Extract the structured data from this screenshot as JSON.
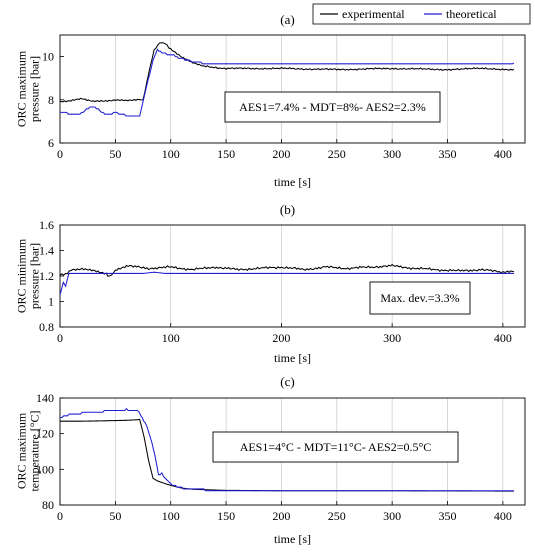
{
  "legend": {
    "items": [
      {
        "label": "experimental",
        "color": "#000000"
      },
      {
        "label": "theoretical",
        "color": "#1f1fd6"
      }
    ],
    "placement": "top-right"
  },
  "chart_data": [
    {
      "type": "line",
      "panel_label": "(a)",
      "xlabel": "time [s]",
      "ylabel": "ORC maximum\npressure [bar]",
      "xlim": [
        0,
        420
      ],
      "ylim": [
        6,
        11
      ],
      "xticks": [
        0,
        50,
        100,
        150,
        200,
        250,
        300,
        350,
        400
      ],
      "yticks": [
        6,
        8,
        10
      ],
      "grid": "vertical",
      "annotation": "AES1=7.4% -  MDT=8%-  AES2=2.3%",
      "series": [
        {
          "name": "experimental",
          "color": "#000000",
          "noise": 0.05,
          "points": [
            [
              0,
              7.9
            ],
            [
              10,
              7.95
            ],
            [
              20,
              8.05
            ],
            [
              30,
              7.95
            ],
            [
              40,
              7.95
            ],
            [
              50,
              8.0
            ],
            [
              60,
              7.95
            ],
            [
              70,
              8.0
            ],
            [
              75,
              8.0
            ],
            [
              80,
              9.2
            ],
            [
              85,
              10.3
            ],
            [
              90,
              10.65
            ],
            [
              95,
              10.6
            ],
            [
              100,
              10.35
            ],
            [
              110,
              10.0
            ],
            [
              120,
              9.7
            ],
            [
              130,
              9.55
            ],
            [
              150,
              9.45
            ],
            [
              200,
              9.45
            ],
            [
              250,
              9.4
            ],
            [
              300,
              9.45
            ],
            [
              350,
              9.4
            ],
            [
              380,
              9.45
            ],
            [
              410,
              9.4
            ]
          ]
        },
        {
          "name": "theoretical",
          "color": "#1f1fd6",
          "noise": 0.0,
          "step": true,
          "points": [
            [
              0,
              7.45
            ],
            [
              12,
              7.3
            ],
            [
              18,
              7.35
            ],
            [
              24,
              7.55
            ],
            [
              30,
              7.7
            ],
            [
              36,
              7.5
            ],
            [
              42,
              7.3
            ],
            [
              50,
              7.4
            ],
            [
              58,
              7.3
            ],
            [
              66,
              7.25
            ],
            [
              72,
              7.25
            ],
            [
              78,
              8.6
            ],
            [
              84,
              9.8
            ],
            [
              88,
              10.35
            ],
            [
              92,
              10.15
            ],
            [
              100,
              10.1
            ],
            [
              110,
              9.9
            ],
            [
              120,
              9.75
            ],
            [
              130,
              9.7
            ],
            [
              410,
              9.7
            ]
          ]
        }
      ]
    },
    {
      "type": "line",
      "panel_label": "(b)",
      "xlabel": "time [s]",
      "ylabel": "ORC minimum\npressure [bar]",
      "xlim": [
        0,
        420
      ],
      "ylim": [
        0.8,
        1.6
      ],
      "xticks": [
        0,
        100,
        200,
        300,
        400
      ],
      "yticks": [
        0.8,
        1,
        1.2,
        1.4,
        1.6
      ],
      "grid": "vertical",
      "annotation": "Max. dev.=3.3%",
      "series": [
        {
          "name": "experimental",
          "color": "#000000",
          "noise": 0.012,
          "points": [
            [
              0,
              1.21
            ],
            [
              5,
              1.21
            ],
            [
              10,
              1.25
            ],
            [
              20,
              1.26
            ],
            [
              30,
              1.24
            ],
            [
              40,
              1.22
            ],
            [
              45,
              1.2
            ],
            [
              50,
              1.24
            ],
            [
              60,
              1.28
            ],
            [
              80,
              1.26
            ],
            [
              100,
              1.27
            ],
            [
              120,
              1.25
            ],
            [
              140,
              1.27
            ],
            [
              160,
              1.25
            ],
            [
              180,
              1.26
            ],
            [
              200,
              1.27
            ],
            [
              220,
              1.25
            ],
            [
              240,
              1.27
            ],
            [
              260,
              1.26
            ],
            [
              280,
              1.27
            ],
            [
              300,
              1.28
            ],
            [
              320,
              1.26
            ],
            [
              340,
              1.25
            ],
            [
              360,
              1.24
            ],
            [
              380,
              1.25
            ],
            [
              400,
              1.23
            ],
            [
              410,
              1.24
            ]
          ]
        },
        {
          "name": "theoretical",
          "color": "#1f1fd6",
          "noise": 0.0,
          "points": [
            [
              0,
              1.05
            ],
            [
              3,
              1.15
            ],
            [
              5,
              1.12
            ],
            [
              8,
              1.22
            ],
            [
              20,
              1.22
            ],
            [
              60,
              1.22
            ],
            [
              75,
              1.22
            ],
            [
              85,
              1.23
            ],
            [
              95,
              1.22
            ],
            [
              410,
              1.22
            ]
          ]
        }
      ]
    },
    {
      "type": "line",
      "panel_label": "(c)",
      "xlabel": "time [s]",
      "ylabel": "ORC maximum\ntemperature [°C]",
      "xlim": [
        0,
        420
      ],
      "ylim": [
        80,
        140
      ],
      "xticks": [
        0,
        50,
        100,
        150,
        200,
        250,
        300,
        350,
        400
      ],
      "yticks": [
        80,
        100,
        120,
        140
      ],
      "grid": "vertical",
      "annotation": "AES1=4°C -  MDT=11°C-  AES2=0.5°C",
      "series": [
        {
          "name": "experimental",
          "color": "#000000",
          "noise": 0.0,
          "points": [
            [
              0,
              127
            ],
            [
              20,
              127
            ],
            [
              40,
              127.2
            ],
            [
              60,
              127.5
            ],
            [
              70,
              127.8
            ],
            [
              72,
              128
            ],
            [
              76,
              118
            ],
            [
              80,
              105
            ],
            [
              84,
              95
            ],
            [
              88,
              93.5
            ],
            [
              95,
              92
            ],
            [
              100,
              91
            ],
            [
              110,
              89.5
            ],
            [
              120,
              88.8
            ],
            [
              150,
              88.2
            ],
            [
              200,
              88
            ],
            [
              300,
              88
            ],
            [
              410,
              87.8
            ]
          ]
        },
        {
          "name": "theoretical",
          "color": "#1f1fd6",
          "noise": 0.0,
          "step": true,
          "points": [
            [
              0,
              129
            ],
            [
              5,
              130
            ],
            [
              10,
              131
            ],
            [
              20,
              131.5
            ],
            [
              30,
              132
            ],
            [
              40,
              132.5
            ],
            [
              50,
              133
            ],
            [
              60,
              133.5
            ],
            [
              66,
              132.5
            ],
            [
              70,
              133
            ],
            [
              73,
              130
            ],
            [
              77,
              126
            ],
            [
              80,
              121
            ],
            [
              83,
              115
            ],
            [
              86,
              107
            ],
            [
              89,
              97
            ],
            [
              92,
              97.5
            ],
            [
              95,
              95
            ],
            [
              100,
              91.5
            ],
            [
              110,
              89.5
            ],
            [
              130,
              88.5
            ],
            [
              150,
              88.2
            ],
            [
              200,
              88.2
            ],
            [
              410,
              88
            ]
          ]
        }
      ]
    }
  ]
}
